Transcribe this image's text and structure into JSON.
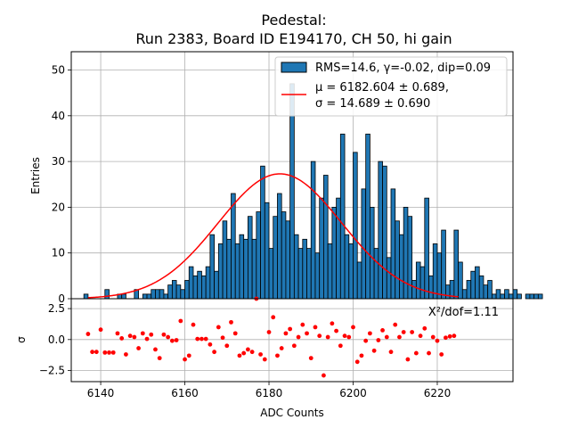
{
  "chart_data": [
    {
      "type": "histogram",
      "title_line1": "Pedestal:",
      "title_line2": "Run 2383, Board ID E194170, CH 50, hi gain",
      "xlabel": "",
      "ylabel": "Entries",
      "xlim": [
        6133,
        6238
      ],
      "ylim": [
        0,
        54
      ],
      "yticks": [
        0,
        10,
        20,
        30,
        40,
        50
      ],
      "xticks": [
        6140,
        6160,
        6180,
        6200,
        6220
      ],
      "grid": true,
      "legend": {
        "placement": "top-right",
        "hist_label": "RMS=14.6, γ=-0.02, dip=0.09",
        "fit_label_line1": "μ = 6182.604 ± 0.689,",
        "fit_label_line2": "σ = 14.689 ± 0.690"
      },
      "colors": {
        "bar": "#1f77b4",
        "edge": "#000000",
        "fit": "#ff0000"
      },
      "bins": {
        "start": 6136,
        "width": 1,
        "counts": [
          1,
          0,
          0,
          0,
          0,
          2,
          0,
          0,
          1,
          1,
          0,
          0,
          2,
          0,
          1,
          1,
          2,
          2,
          2,
          1,
          3,
          4,
          3,
          2,
          4,
          7,
          5,
          6,
          5,
          7,
          14,
          6,
          12,
          17,
          13,
          23,
          12,
          14,
          13,
          18,
          13,
          19,
          29,
          21,
          11,
          18,
          23,
          19,
          17,
          47,
          14,
          11,
          13,
          11,
          30,
          10,
          22,
          27,
          12,
          20,
          22,
          36,
          14,
          12,
          32,
          8,
          24,
          36,
          20,
          11,
          30,
          29,
          9,
          24,
          17,
          14,
          20,
          18,
          4,
          8,
          7,
          22,
          5,
          12,
          10,
          15,
          3,
          4,
          15,
          8,
          2,
          4,
          6,
          7,
          5,
          3,
          4,
          1,
          2,
          1,
          2,
          1,
          2,
          1,
          0,
          1,
          1,
          1,
          1
        ]
      },
      "fit": {
        "mu": 6182.604,
        "sigma": 14.689,
        "amplitude": 27.3
      }
    },
    {
      "type": "scatter",
      "xlabel": "ADC Counts",
      "ylabel": "σ",
      "ylim": [
        -3.4,
        3.3
      ],
      "yticks": [
        2.5,
        0.0,
        -2.5
      ],
      "ytick_labels": [
        "2.5",
        "0.0",
        "−2.5"
      ],
      "annotation": "X²/dof=1.11",
      "point_color": "#ff0000",
      "x": [
        6137,
        6138,
        6139,
        6140,
        6141,
        6142,
        6143,
        6144,
        6145,
        6146,
        6147,
        6148,
        6149,
        6150,
        6151,
        6152,
        6153,
        6154,
        6155,
        6156,
        6157,
        6158,
        6159,
        6160,
        6161,
        6162,
        6163,
        6164,
        6165,
        6166,
        6167,
        6168,
        6169,
        6170,
        6171,
        6172,
        6173,
        6174,
        6175,
        6176,
        6177,
        6178,
        6179,
        6180,
        6181,
        6182,
        6183,
        6184,
        6185,
        6186,
        6187,
        6188,
        6189,
        6190,
        6191,
        6192,
        6193,
        6194,
        6195,
        6196,
        6197,
        6198,
        6199,
        6200,
        6201,
        6202,
        6203,
        6204,
        6205,
        6206,
        6207,
        6208,
        6209,
        6210,
        6211,
        6212,
        6213,
        6214,
        6215,
        6216,
        6217,
        6218,
        6219,
        6220,
        6221,
        6222,
        6223,
        6224
      ],
      "y": [
        0.45,
        -1.0,
        -1.0,
        0.8,
        -1.05,
        -1.05,
        -1.05,
        0.5,
        0.1,
        -1.2,
        0.3,
        0.2,
        -0.7,
        0.5,
        0.05,
        0.4,
        -0.8,
        -1.5,
        0.4,
        0.2,
        -0.1,
        -0.05,
        1.5,
        -1.6,
        -1.3,
        1.2,
        0.05,
        0.05,
        0.05,
        -0.4,
        -1.0,
        1.0,
        0.15,
        -0.5,
        1.4,
        0.5,
        -1.3,
        -1.1,
        -0.8,
        -1.0,
        3.3,
        -1.2,
        -1.6,
        0.6,
        1.8,
        -1.3,
        -0.7,
        0.5,
        0.85,
        -0.5,
        0.2,
        1.2,
        0.5,
        -1.5,
        1.0,
        0.3,
        -2.9,
        0.2,
        1.3,
        0.7,
        -0.5,
        0.3,
        0.2,
        1.0,
        -1.8,
        -1.3,
        -0.1,
        0.5,
        -0.9,
        -0.05,
        0.75,
        0.2,
        -1.0,
        1.2,
        0.2,
        0.6,
        -1.6,
        0.6,
        -1.1,
        0.3,
        0.9,
        -1.1,
        0.2,
        -0.1,
        -1.2,
        0.15,
        0.25,
        0.3
      ]
    }
  ]
}
